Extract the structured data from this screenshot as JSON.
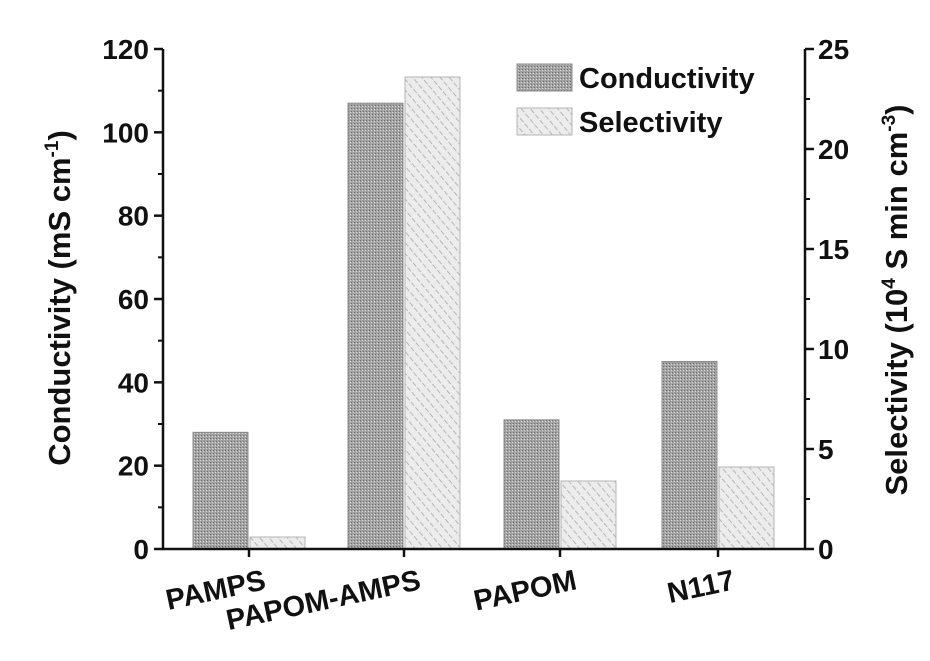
{
  "chart_data": {
    "type": "bar",
    "categories": [
      "PAMPS",
      "PAPOM-AMPS",
      "PAPOM",
      "N117"
    ],
    "series": [
      {
        "name": "Conductivity",
        "axis": "left",
        "values": [
          28,
          107,
          31,
          45
        ]
      },
      {
        "name": "Selectivity",
        "axis": "right",
        "values": [
          0.6,
          23.6,
          3.4,
          4.1
        ]
      }
    ],
    "left_axis": {
      "ylabel": "Conductivity (mS cm",
      "ylabel_sup": "-1",
      "ylabel_end": ")",
      "ylim": [
        0,
        120
      ],
      "ticks": [
        "0",
        "20",
        "40",
        "60",
        "80",
        "100",
        "120"
      ]
    },
    "right_axis": {
      "ylabel": "Selectivity (10",
      "ylabel_sup1": "4",
      "ylabel_mid": " S min cm",
      "ylabel_sup2": "-3",
      "ylabel_end": ")",
      "ylim": [
        0,
        25
      ],
      "ticks": [
        "0",
        "5",
        "10",
        "15",
        "20",
        "25"
      ]
    },
    "legend": {
      "position": "top-right",
      "entries": [
        "Conductivity",
        "Selectivity"
      ]
    },
    "colors": {
      "conductivity": "#a9a9a9",
      "selectivity": "#e3e3e3",
      "axis": "#111111"
    }
  }
}
